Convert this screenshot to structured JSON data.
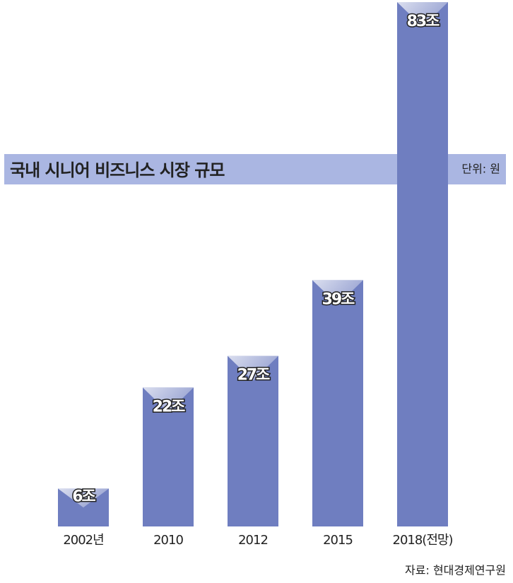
{
  "chart_data": {
    "type": "bar",
    "title": "국내 시니어 비즈니스 시장 규모",
    "unit": "단위: 원",
    "source": "자료: 현대경제연구원",
    "categories": [
      "2002년",
      "2010",
      "2012",
      "2015",
      "2018(전망)"
    ],
    "values": [
      6,
      22,
      27,
      39,
      83
    ],
    "value_labels": [
      "6조",
      "22조",
      "27조",
      "39조",
      "83조"
    ],
    "color": "#6f7ec0",
    "band_color": "#aab6e2"
  }
}
